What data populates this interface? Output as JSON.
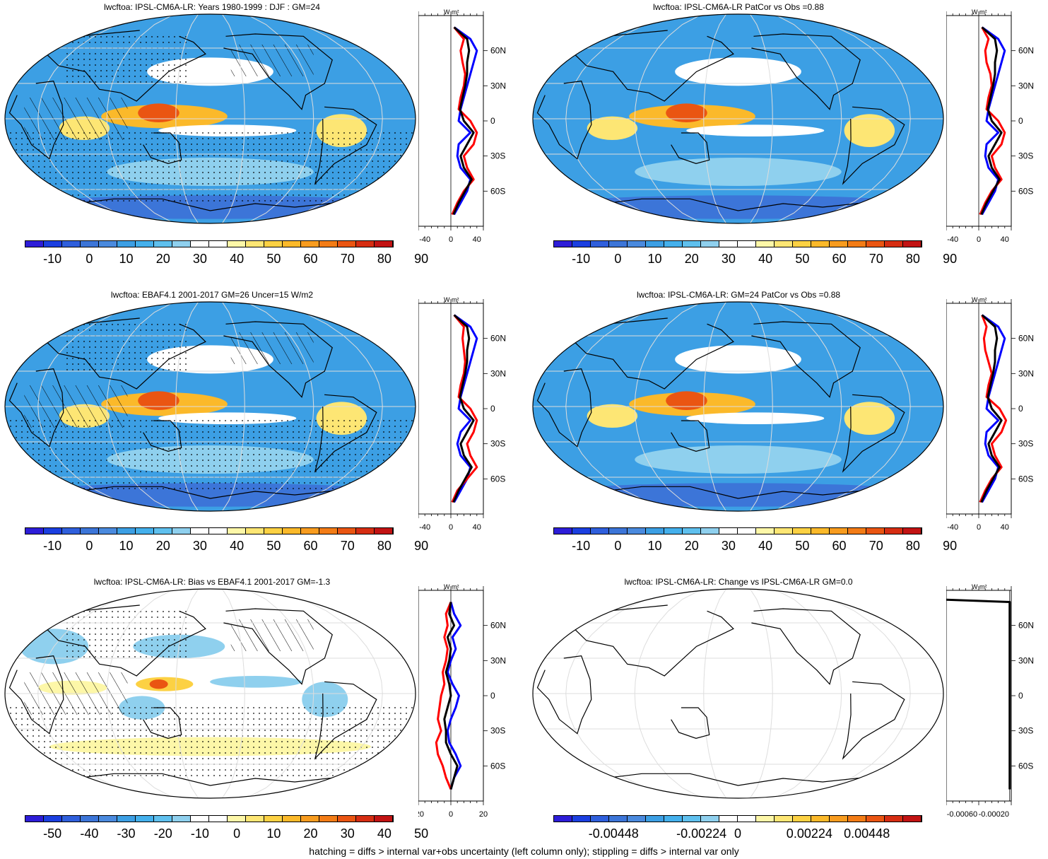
{
  "footnote": "hatching = diffs > internal var+obs uncertainty (left column only); stippling = diffs > internal var only",
  "profile_unit_label": "W m²",
  "lat_ticks": [
    "60N",
    "30N",
    "0",
    "30S",
    "60S"
  ],
  "palette_standard": [
    "#2d1dd8",
    "#1b3fe0",
    "#2f5fdc",
    "#3c75d8",
    "#4a8ade",
    "#3c9fe4",
    "#44b0ec",
    "#5fc0ee",
    "#8fd0ee",
    "#ffffff",
    "#ffffff",
    "#fdf7a8",
    "#fde674",
    "#fcd143",
    "#fbb92a",
    "#f89c1f",
    "#f37c16",
    "#ea5512",
    "#d62d12",
    "#c21313"
  ],
  "palette_diverging": [
    "#2d1dd8",
    "#1b3fe0",
    "#2f5fdc",
    "#3c75d8",
    "#4a8ade",
    "#3c9fe4",
    "#44b0ec",
    "#5fc0ee",
    "#8fd0ee",
    "#ffffff",
    "#ffffff",
    "#fdf7a8",
    "#fde674",
    "#fcd143",
    "#fbb92a",
    "#f89c1f",
    "#f37c16",
    "#ea5512",
    "#d62d12",
    "#c21313"
  ],
  "chart_data": [
    {
      "type": "heatmap",
      "title": "lwcftoa: IPSL-CM6A-LR: Years 1980-1999 : DJF : GM=24",
      "colorbar_labels": [
        "-10",
        "0",
        "10",
        "20",
        "30",
        "40",
        "50",
        "60",
        "70",
        "80",
        "90"
      ],
      "hatching": true,
      "stippling": true,
      "profile": {
        "xlim": [
          -50,
          50
        ],
        "x_ticks": [
          "-40",
          "0",
          "40"
        ],
        "series": [
          {
            "color": "#0000ff",
            "lat": [
              80,
              70,
              60,
              50,
              40,
              30,
              20,
              10,
              0,
              -10,
              -20,
              -30,
              -40,
              -50,
              -60,
              -70,
              -80
            ],
            "values": [
              5,
              30,
              40,
              35,
              30,
              25,
              20,
              15,
              12,
              30,
              12,
              10,
              15,
              30,
              25,
              15,
              5
            ]
          },
          {
            "color": "#ff0000",
            "lat": [
              80,
              70,
              60,
              50,
              40,
              30,
              20,
              10,
              0,
              -10,
              -20,
              -30,
              -40,
              -50,
              -60,
              -70,
              -80
            ],
            "values": [
              5,
              20,
              15,
              18,
              22,
              20,
              15,
              12,
              30,
              40,
              35,
              20,
              25,
              35,
              20,
              10,
              2
            ]
          },
          {
            "color": "#000000",
            "lat": [
              80,
              70,
              60,
              50,
              40,
              30,
              20,
              10,
              0,
              -10,
              -20,
              -30,
              -40,
              -50,
              -60,
              -70,
              -80
            ],
            "values": [
              5,
              25,
              28,
              25,
              25,
              22,
              18,
              14,
              20,
              35,
              25,
              15,
              20,
              32,
              22,
              12,
              4
            ]
          }
        ]
      }
    },
    {
      "type": "heatmap",
      "title": "lwcftoa: IPSL-CM6A-LR PatCor vs Obs =0.88",
      "colorbar_labels": [
        "-10",
        "0",
        "10",
        "20",
        "30",
        "40",
        "50",
        "60",
        "70",
        "80",
        "90"
      ],
      "hatching": false,
      "stippling": false,
      "profile": {
        "xlim": [
          -50,
          50
        ],
        "x_ticks": [
          "-40",
          "0",
          "40"
        ],
        "series": [
          {
            "color": "#0000ff",
            "lat": [
              80,
              70,
              60,
              50,
              40,
              30,
              20,
              10,
              0,
              -10,
              -20,
              -30,
              -40,
              -50,
              -60,
              -70,
              -80
            ],
            "values": [
              5,
              30,
              40,
              35,
              30,
              25,
              20,
              15,
              12,
              30,
              12,
              10,
              15,
              30,
              25,
              15,
              5
            ]
          },
          {
            "color": "#ff0000",
            "lat": [
              80,
              70,
              60,
              50,
              40,
              30,
              20,
              10,
              0,
              -10,
              -20,
              -30,
              -40,
              -50,
              -60,
              -70,
              -80
            ],
            "values": [
              5,
              15,
              10,
              12,
              18,
              20,
              15,
              12,
              30,
              40,
              35,
              20,
              25,
              35,
              20,
              10,
              2
            ]
          },
          {
            "color": "#000000",
            "lat": [
              80,
              70,
              60,
              50,
              40,
              30,
              20,
              10,
              0,
              -10,
              -20,
              -30,
              -40,
              -50,
              -60,
              -70,
              -80
            ],
            "values": [
              5,
              25,
              28,
              25,
              25,
              22,
              18,
              14,
              20,
              35,
              25,
              15,
              20,
              32,
              22,
              12,
              4
            ]
          }
        ]
      }
    },
    {
      "type": "heatmap",
      "title": "lwcftoa: EBAF4.1 2001-2017 GM=26 Uncer=15 W/m2",
      "colorbar_labels": [
        "-10",
        "0",
        "10",
        "20",
        "30",
        "40",
        "50",
        "60",
        "70",
        "80",
        "90"
      ],
      "hatching": true,
      "stippling": true,
      "profile": {
        "xlim": [
          -50,
          50
        ],
        "x_ticks": [
          "-40",
          "0",
          "40"
        ],
        "series": [
          {
            "color": "#0000ff",
            "lat": [
              80,
              70,
              60,
              50,
              40,
              30,
              20,
              10,
              0,
              -10,
              -20,
              -30,
              -40,
              -50,
              -60,
              -70,
              -80
            ],
            "values": [
              5,
              30,
              40,
              35,
              30,
              25,
              20,
              15,
              12,
              30,
              15,
              10,
              15,
              30,
              25,
              15,
              5
            ]
          },
          {
            "color": "#ff0000",
            "lat": [
              80,
              70,
              60,
              50,
              40,
              30,
              20,
              10,
              0,
              -10,
              -20,
              -30,
              -40,
              -50,
              -60,
              -70,
              -80
            ],
            "values": [
              5,
              20,
              18,
              20,
              22,
              20,
              15,
              12,
              30,
              40,
              35,
              25,
              30,
              40,
              25,
              10,
              2
            ]
          },
          {
            "color": "#000000",
            "lat": [
              80,
              70,
              60,
              50,
              40,
              30,
              20,
              10,
              0,
              -10,
              -20,
              -30,
              -40,
              -50,
              -60,
              -70,
              -80
            ],
            "values": [
              5,
              25,
              28,
              25,
              25,
              22,
              18,
              14,
              20,
              35,
              25,
              15,
              20,
              32,
              22,
              12,
              4
            ]
          }
        ]
      }
    },
    {
      "type": "heatmap",
      "title": "lwcftoa: IPSL-CM6A-LR: GM=24 PatCor vs Obs =0.88",
      "colorbar_labels": [
        "-10",
        "0",
        "10",
        "20",
        "30",
        "40",
        "50",
        "60",
        "70",
        "80",
        "90"
      ],
      "hatching": false,
      "stippling": false,
      "profile": {
        "xlim": [
          -50,
          50
        ],
        "x_ticks": [
          "-40",
          "0",
          "40"
        ],
        "series": [
          {
            "color": "#0000ff",
            "lat": [
              80,
              70,
              60,
              50,
              40,
              30,
              20,
              10,
              0,
              -10,
              -20,
              -30,
              -40,
              -50,
              -60,
              -70,
              -80
            ],
            "values": [
              5,
              30,
              40,
              35,
              30,
              25,
              20,
              15,
              12,
              30,
              12,
              10,
              15,
              30,
              25,
              15,
              5
            ]
          },
          {
            "color": "#ff0000",
            "lat": [
              80,
              70,
              60,
              50,
              40,
              30,
              20,
              10,
              0,
              -10,
              -20,
              -30,
              -40,
              -50,
              -60,
              -70,
              -80
            ],
            "values": [
              5,
              12,
              8,
              10,
              15,
              20,
              15,
              12,
              32,
              42,
              35,
              20,
              25,
              35,
              20,
              10,
              2
            ]
          },
          {
            "color": "#000000",
            "lat": [
              80,
              70,
              60,
              50,
              40,
              30,
              20,
              10,
              0,
              -10,
              -20,
              -30,
              -40,
              -50,
              -60,
              -70,
              -80
            ],
            "values": [
              5,
              25,
              28,
              25,
              25,
              22,
              18,
              14,
              20,
              35,
              25,
              15,
              20,
              32,
              22,
              12,
              4
            ]
          }
        ]
      }
    },
    {
      "type": "heatmap",
      "title": "lwcftoa: IPSL-CM6A-LR: Bias vs EBAF4.1 2001-2017 GM=-1.3",
      "colorbar_labels": [
        "-50",
        "-40",
        "-30",
        "-20",
        "-10",
        "0",
        "10",
        "20",
        "30",
        "40",
        "50"
      ],
      "hatching": true,
      "stippling": true,
      "profile": {
        "xlim": [
          -20,
          20
        ],
        "x_ticks": [
          "-20",
          "0",
          "20"
        ],
        "series": [
          {
            "color": "#0000ff",
            "lat": [
              80,
              70,
              60,
              50,
              40,
              30,
              20,
              10,
              0,
              -10,
              -20,
              -30,
              -40,
              -50,
              -60,
              -70,
              -80
            ],
            "values": [
              0,
              2,
              6,
              1,
              3,
              0,
              -2,
              1,
              5,
              3,
              0,
              -2,
              -1,
              3,
              6,
              2,
              0
            ]
          },
          {
            "color": "#ff0000",
            "lat": [
              80,
              70,
              60,
              50,
              40,
              30,
              20,
              10,
              0,
              -10,
              -20,
              -30,
              -40,
              -50,
              -60,
              -70,
              -80
            ],
            "values": [
              0,
              -3,
              -2,
              -4,
              -2,
              -3,
              -5,
              -4,
              -6,
              -7,
              -8,
              -6,
              -9,
              -8,
              -5,
              -3,
              0
            ]
          },
          {
            "color": "#000000",
            "lat": [
              80,
              70,
              60,
              50,
              40,
              30,
              20,
              10,
              0,
              -10,
              -20,
              -30,
              -40,
              -50,
              -60,
              -70,
              -80
            ],
            "values": [
              0,
              -1,
              2,
              -2,
              0,
              -1,
              -3,
              -1,
              0,
              -2,
              -4,
              -3,
              -3,
              0,
              4,
              2,
              0
            ]
          }
        ]
      }
    },
    {
      "type": "heatmap",
      "title": "lwcftoa: IPSL-CM6A-LR: Change vs IPSL-CM6A-LR GM=0.0",
      "colorbar_labels": [
        "-0.00448",
        "-0.00224",
        "0",
        "0.00224",
        "0.00448"
      ],
      "hatching": false,
      "stippling": false,
      "profile": {
        "xlim": [
          -0.0008,
          2e-05
        ],
        "x_ticks": [
          "-0.00060",
          "-0.00020"
        ],
        "series": [
          {
            "color": "#000000",
            "lat": [
              82,
              80,
              60,
              30,
              0,
              -30,
              -60,
              -80
            ],
            "values": [
              -0.0008,
              0,
              0,
              0,
              0,
              0,
              0,
              0
            ]
          }
        ]
      }
    }
  ]
}
